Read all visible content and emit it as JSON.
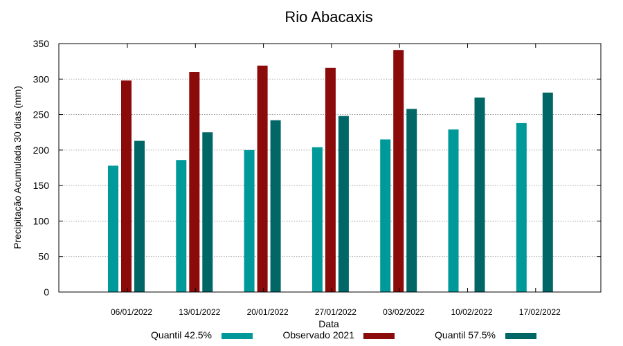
{
  "chart_data": {
    "type": "bar",
    "title": "Rio Abacaxis",
    "xlabel": "Data",
    "ylabel": "Precipitação Acumulada 30 dias (mm)",
    "ylim": [
      0,
      350
    ],
    "yticks": [
      0,
      50,
      100,
      150,
      200,
      250,
      300,
      350
    ],
    "grid": true,
    "legend_position": "bottom",
    "categories": [
      "06/01/2022",
      "13/01/2022",
      "20/01/2022",
      "27/01/2022",
      "03/02/2022",
      "10/02/2022",
      "17/02/2022"
    ],
    "series": [
      {
        "name": "Quantil 42.5%",
        "color": "#009999",
        "values": [
          178,
          186,
          200,
          204,
          215,
          229,
          238
        ]
      },
      {
        "name": "Observado 2021",
        "color": "#8b0a0a",
        "values": [
          298,
          310,
          319,
          316,
          341,
          null,
          null
        ]
      },
      {
        "name": "Quantil 57.5%",
        "color": "#006666",
        "values": [
          213,
          225,
          242,
          248,
          258,
          274,
          281
        ]
      }
    ]
  }
}
